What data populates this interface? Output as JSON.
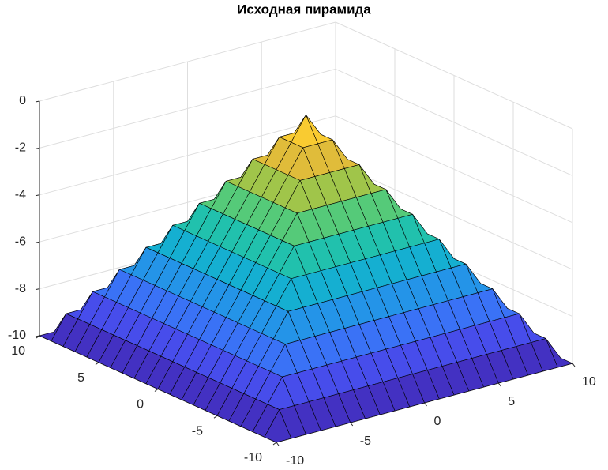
{
  "chart_data": {
    "type": "surface",
    "title": "Исходная пирамида",
    "x": [
      -10,
      -9,
      -8,
      -7,
      -6,
      -5,
      -4,
      -3,
      -2,
      -1,
      0,
      1,
      2,
      3,
      4,
      5,
      6,
      7,
      8,
      9,
      10
    ],
    "y": [
      -10,
      -9,
      -8,
      -7,
      -6,
      -5,
      -4,
      -3,
      -2,
      -1,
      0,
      1,
      2,
      3,
      4,
      5,
      6,
      7,
      8,
      9,
      10
    ],
    "z": [
      [
        -10,
        -10,
        -10,
        -10,
        -10,
        -10,
        -10,
        -10,
        -10,
        -10,
        -10,
        -10,
        -10,
        -10,
        -10,
        -10,
        -10,
        -10,
        -10,
        -10,
        -10
      ],
      [
        -10,
        -9,
        -9,
        -9,
        -9,
        -9,
        -9,
        -9,
        -9,
        -9,
        -9,
        -9,
        -9,
        -9,
        -9,
        -9,
        -9,
        -9,
        -9,
        -9,
        -10
      ],
      [
        -10,
        -9,
        -8,
        -8,
        -8,
        -8,
        -8,
        -8,
        -8,
        -8,
        -8,
        -8,
        -8,
        -8,
        -8,
        -8,
        -8,
        -8,
        -8,
        -9,
        -10
      ],
      [
        -10,
        -9,
        -8,
        -7,
        -7,
        -7,
        -7,
        -7,
        -7,
        -7,
        -7,
        -7,
        -7,
        -7,
        -7,
        -7,
        -7,
        -7,
        -8,
        -9,
        -10
      ],
      [
        -10,
        -9,
        -8,
        -7,
        -6,
        -6,
        -6,
        -6,
        -6,
        -6,
        -6,
        -6,
        -6,
        -6,
        -6,
        -6,
        -6,
        -7,
        -8,
        -9,
        -10
      ],
      [
        -10,
        -9,
        -8,
        -7,
        -6,
        -5,
        -5,
        -5,
        -5,
        -5,
        -5,
        -5,
        -5,
        -5,
        -5,
        -5,
        -6,
        -7,
        -8,
        -9,
        -10
      ],
      [
        -10,
        -9,
        -8,
        -7,
        -6,
        -5,
        -4,
        -4,
        -4,
        -4,
        -4,
        -4,
        -4,
        -4,
        -4,
        -5,
        -6,
        -7,
        -8,
        -9,
        -10
      ],
      [
        -10,
        -9,
        -8,
        -7,
        -6,
        -5,
        -4,
        -3,
        -3,
        -3,
        -3,
        -3,
        -3,
        -3,
        -4,
        -5,
        -6,
        -7,
        -8,
        -9,
        -10
      ],
      [
        -10,
        -9,
        -8,
        -7,
        -6,
        -5,
        -4,
        -3,
        -2,
        -2,
        -2,
        -2,
        -2,
        -3,
        -4,
        -5,
        -6,
        -7,
        -8,
        -9,
        -10
      ],
      [
        -10,
        -9,
        -8,
        -7,
        -6,
        -5,
        -4,
        -3,
        -2,
        -1,
        -1,
        -1,
        -2,
        -3,
        -4,
        -5,
        -6,
        -7,
        -8,
        -9,
        -10
      ],
      [
        -10,
        -9,
        -8,
        -7,
        -6,
        -5,
        -4,
        -3,
        -2,
        -1,
        0,
        -1,
        -2,
        -3,
        -4,
        -5,
        -6,
        -7,
        -8,
        -9,
        -10
      ],
      [
        -10,
        -9,
        -8,
        -7,
        -6,
        -5,
        -4,
        -3,
        -2,
        -1,
        -1,
        -1,
        -2,
        -3,
        -4,
        -5,
        -6,
        -7,
        -8,
        -9,
        -10
      ],
      [
        -10,
        -9,
        -8,
        -7,
        -6,
        -5,
        -4,
        -3,
        -2,
        -2,
        -2,
        -2,
        -2,
        -3,
        -4,
        -5,
        -6,
        -7,
        -8,
        -9,
        -10
      ],
      [
        -10,
        -9,
        -8,
        -7,
        -6,
        -5,
        -4,
        -3,
        -3,
        -3,
        -3,
        -3,
        -3,
        -3,
        -4,
        -5,
        -6,
        -7,
        -8,
        -9,
        -10
      ],
      [
        -10,
        -9,
        -8,
        -7,
        -6,
        -5,
        -4,
        -4,
        -4,
        -4,
        -4,
        -4,
        -4,
        -4,
        -4,
        -5,
        -6,
        -7,
        -8,
        -9,
        -10
      ],
      [
        -10,
        -9,
        -8,
        -7,
        -6,
        -5,
        -5,
        -5,
        -5,
        -5,
        -5,
        -5,
        -5,
        -5,
        -5,
        -5,
        -6,
        -7,
        -8,
        -9,
        -10
      ],
      [
        -10,
        -9,
        -8,
        -7,
        -6,
        -6,
        -6,
        -6,
        -6,
        -6,
        -6,
        -6,
        -6,
        -6,
        -6,
        -6,
        -6,
        -7,
        -8,
        -9,
        -10
      ],
      [
        -10,
        -9,
        -8,
        -7,
        -7,
        -7,
        -7,
        -7,
        -7,
        -7,
        -7,
        -7,
        -7,
        -7,
        -7,
        -7,
        -7,
        -7,
        -8,
        -9,
        -10
      ],
      [
        -10,
        -9,
        -8,
        -8,
        -8,
        -8,
        -8,
        -8,
        -8,
        -8,
        -8,
        -8,
        -8,
        -8,
        -8,
        -8,
        -8,
        -8,
        -8,
        -9,
        -10
      ],
      [
        -10,
        -9,
        -9,
        -9,
        -9,
        -9,
        -9,
        -9,
        -9,
        -9,
        -9,
        -9,
        -9,
        -9,
        -9,
        -9,
        -9,
        -9,
        -9,
        -9,
        -10
      ],
      [
        -10,
        -10,
        -10,
        -10,
        -10,
        -10,
        -10,
        -10,
        -10,
        -10,
        -10,
        -10,
        -10,
        -10,
        -10,
        -10,
        -10,
        -10,
        -10,
        -10,
        -10
      ]
    ],
    "xlim": [
      -10,
      10
    ],
    "ylim": [
      -10,
      10
    ],
    "zlim": [
      -10,
      0
    ],
    "xticks": [
      -10,
      -5,
      0,
      5,
      10
    ],
    "yticks": [
      -10,
      -5,
      0,
      5,
      10
    ],
    "zticks": [
      -10,
      -8,
      -6,
      -4,
      -2,
      0
    ],
    "grid": true,
    "colormap": "parula"
  }
}
